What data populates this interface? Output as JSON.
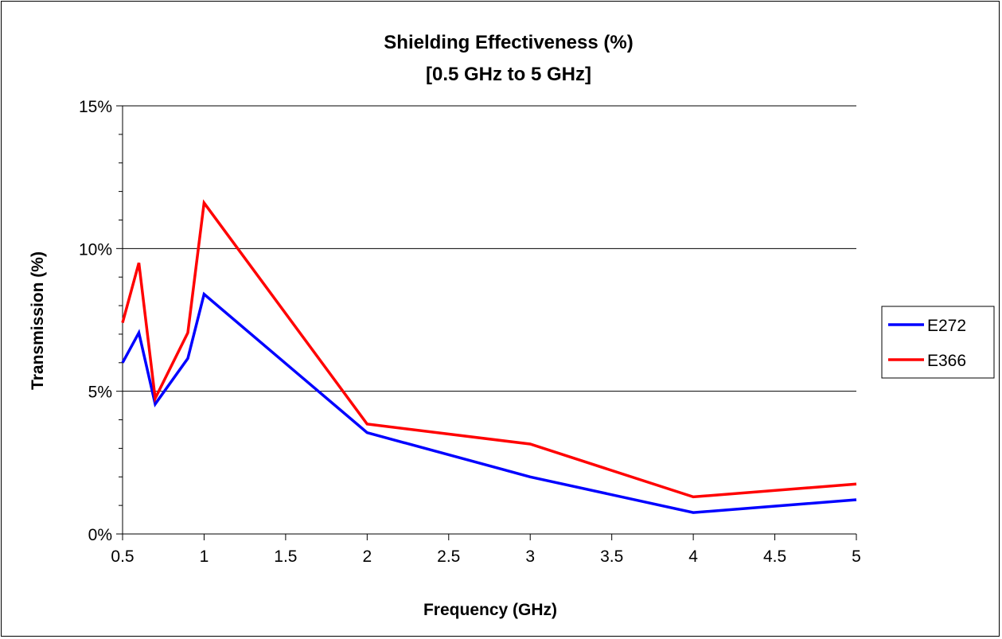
{
  "chart_data": {
    "type": "line",
    "title": [
      "Shielding Effectiveness (%)",
      "[0.5 GHz to 5 GHz]"
    ],
    "xlabel": "Frequency (GHz)",
    "ylabel": "Transmission (%)",
    "xlim": [
      0.5,
      5
    ],
    "ylim": [
      0,
      15
    ],
    "x_ticks": [
      "0.5",
      "1",
      "1.5",
      "2",
      "2.5",
      "3",
      "3.5",
      "4",
      "4.5",
      "5"
    ],
    "x_tick_values": [
      0.5,
      1,
      1.5,
      2,
      2.5,
      3,
      3.5,
      4,
      4.5,
      5
    ],
    "y_ticks": [
      "0%",
      "5%",
      "10%",
      "15%"
    ],
    "y_tick_values": [
      0,
      5,
      10,
      15
    ],
    "y_minor_step": 1,
    "grid": "horizontal-major",
    "legend_position": "right",
    "series": [
      {
        "name": "E272",
        "color": "#0000ff",
        "x": [
          0.5,
          0.6,
          0.7,
          0.9,
          1,
          2,
          3,
          4,
          5
        ],
        "values": [
          6.0,
          7.05,
          4.55,
          6.15,
          8.4,
          3.55,
          2.0,
          0.75,
          1.2
        ]
      },
      {
        "name": "E366",
        "color": "#ff0000",
        "x": [
          0.5,
          0.6,
          0.7,
          0.9,
          1,
          2,
          3,
          4,
          5
        ],
        "values": [
          7.4,
          9.5,
          4.75,
          7.05,
          11.6,
          3.85,
          3.15,
          1.3,
          1.75
        ]
      }
    ]
  }
}
